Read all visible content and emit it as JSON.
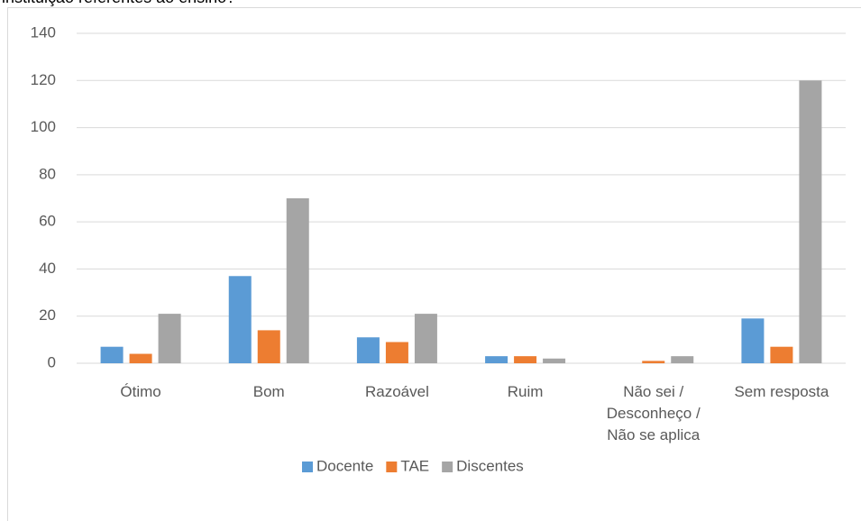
{
  "chart_data": {
    "type": "bar",
    "title": "instituição referentes ao ensino?",
    "categories": [
      "Ótimo",
      "Bom",
      "Razoável",
      "Ruim",
      "Não sei /\nDesconheço /\nNão se aplica",
      "Sem resposta"
    ],
    "series": [
      {
        "name": "Docente",
        "color": "#5b9bd5",
        "values": [
          7,
          37,
          11,
          3,
          0,
          19
        ]
      },
      {
        "name": "TAE",
        "color": "#ed7d31",
        "values": [
          4,
          14,
          9,
          3,
          1,
          7
        ]
      },
      {
        "name": "Discentes",
        "color": "#a5a5a5",
        "values": [
          21,
          70,
          21,
          2,
          3,
          120
        ]
      }
    ],
    "ylim": [
      0,
      140
    ],
    "yticks": [
      0,
      20,
      40,
      60,
      80,
      100,
      120,
      140
    ],
    "grid": true,
    "legend": "bottom"
  }
}
